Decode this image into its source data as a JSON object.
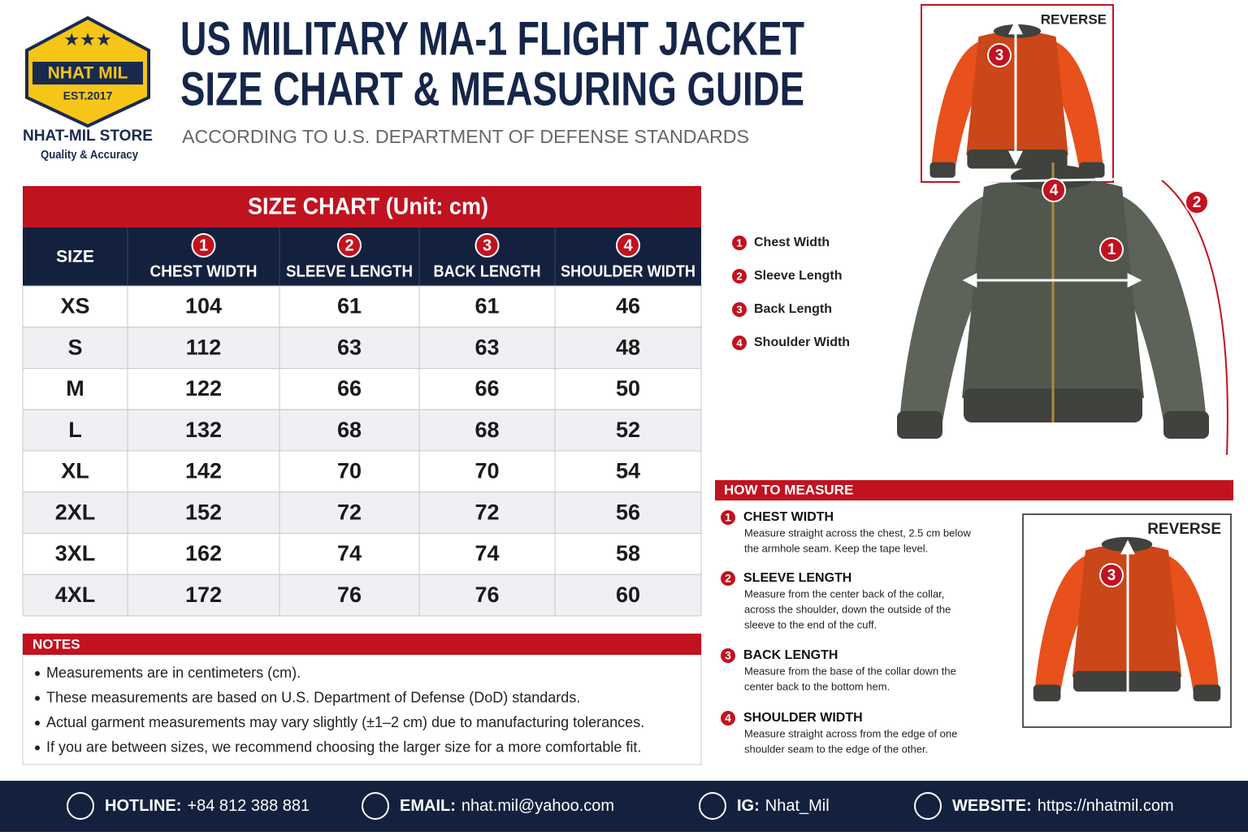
{
  "logo": {
    "name": "NHAT MIL",
    "est": "EST.2017",
    "store": "NHAT-MIL STORE",
    "tagline": "Quality & Accuracy"
  },
  "header": {
    "title_line1": "US MILITARY MA-1 FLIGHT JACKET",
    "title_line2": "SIZE CHART & MEASURING GUIDE",
    "subtitle": "ACCORDING TO U.S. DEPARTMENT OF DEFENSE STANDARDS"
  },
  "table": {
    "title": "SIZE CHART (Unit: cm)",
    "columns": [
      {
        "label": "SIZE"
      },
      {
        "number": 1,
        "label": "CHEST WIDTH"
      },
      {
        "number": 2,
        "label": "SLEEVE LENGTH"
      },
      {
        "number": 3,
        "label": "BACK LENGTH"
      },
      {
        "number": 4,
        "label": "SHOULDER WIDTH"
      }
    ],
    "rows": [
      [
        "XS",
        104,
        61,
        61,
        46
      ],
      [
        "S",
        112,
        63,
        63,
        48
      ],
      [
        "M",
        122,
        66,
        66,
        50
      ],
      [
        "L",
        132,
        68,
        68,
        52
      ],
      [
        "XL",
        142,
        70,
        70,
        54
      ],
      [
        "2XL",
        152,
        72,
        72,
        56
      ],
      [
        "3XL",
        162,
        74,
        74,
        58
      ],
      [
        "4XL",
        172,
        76,
        76,
        60
      ]
    ]
  },
  "notes": {
    "title": "NOTES",
    "items": [
      "Measurements are in centimeters (cm).",
      "These measurements are based on U.S. Department of Defense (DoD) standards.",
      "Actual garment measurements may vary slightly (±1–2 cm) due to manufacturing tolerances.",
      "If you are between sizes, we recommend choosing the larger size for a more comfortable fit."
    ]
  },
  "legend": [
    {
      "number": 1,
      "label": "Chest Width"
    },
    {
      "number": 2,
      "label": "Sleeve Length"
    },
    {
      "number": 3,
      "label": "Back Length"
    },
    {
      "number": 4,
      "label": "Shoulder Width"
    }
  ],
  "diagram": {
    "reverse_label": "REVERSE"
  },
  "how_to": {
    "title": "HOW TO MEASURE",
    "steps": [
      {
        "number": 1,
        "title": "CHEST WIDTH",
        "lines": [
          "Measure straight across the chest, 2.5 cm below",
          "the armhole seam. Keep the tape level."
        ]
      },
      {
        "number": 2,
        "title": "SLEEVE LENGTH",
        "lines": [
          "Measure from the center back of the collar,",
          "across the shoulder, down the outside of the",
          "sleeve to the end of the cuff."
        ]
      },
      {
        "number": 3,
        "title": "BACK LENGTH",
        "lines": [
          "Measure from the base of the collar down the",
          "center back to the bottom hem."
        ]
      },
      {
        "number": 4,
        "title": "SHOULDER WIDTH",
        "lines": [
          "Measure straight across from the edge of one",
          "shoulder seam to the edge of the other."
        ]
      }
    ]
  },
  "footer": {
    "items": [
      {
        "label": "HOTLINE:",
        "value": "+84 812 388 881"
      },
      {
        "label": "EMAIL:",
        "value": "nhat.mil@yahoo.com"
      },
      {
        "label": "IG:",
        "value": "Nhat_Mil"
      },
      {
        "label": "WEBSITE:",
        "value": "https://nhatmil.com"
      }
    ]
  }
}
